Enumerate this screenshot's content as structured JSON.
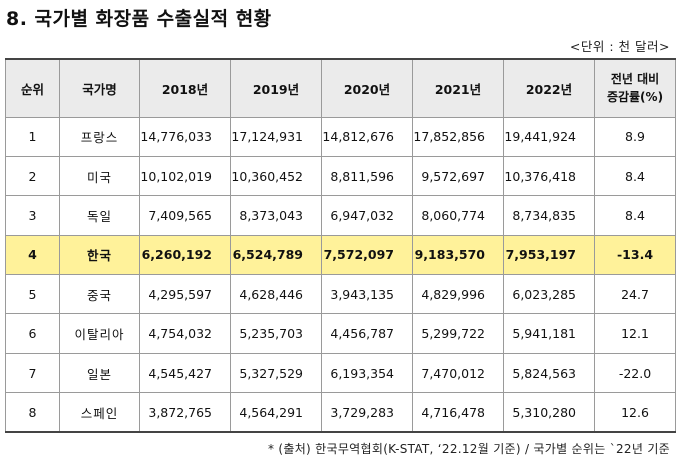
{
  "title": "8. 국가별 화장품 수출실적 현황",
  "unit": "<단위 : 천 달러>",
  "headers": {
    "rank": "순위",
    "country": "국가명",
    "y2018": "2018년",
    "y2019": "2019년",
    "y2020": "2020년",
    "y2021": "2021년",
    "y2022": "2022년",
    "change_line1": "전년 대비",
    "change_line2": "증감률(%)"
  },
  "rows": [
    {
      "rank": "1",
      "country": "프랑스",
      "y2018": "14,776,033",
      "y2019": "17,124,931",
      "y2020": "14,812,676",
      "y2021": "17,852,856",
      "y2022": "19,441,924",
      "change": "8.9"
    },
    {
      "rank": "2",
      "country": "미국",
      "y2018": "10,102,019",
      "y2019": "10,360,452",
      "y2020": "8,811,596",
      "y2021": "9,572,697",
      "y2022": "10,376,418",
      "change": "8.4"
    },
    {
      "rank": "3",
      "country": "독일",
      "y2018": "7,409,565",
      "y2019": "8,373,043",
      "y2020": "6,947,032",
      "y2021": "8,060,774",
      "y2022": "8,734,835",
      "change": "8.4"
    },
    {
      "rank": "4",
      "country": "한국",
      "y2018": "6,260,192",
      "y2019": "6,524,789",
      "y2020": "7,572,097",
      "y2021": "9,183,570",
      "y2022": "7,953,197",
      "change": "-13.4"
    },
    {
      "rank": "5",
      "country": "중국",
      "y2018": "4,295,597",
      "y2019": "4,628,446",
      "y2020": "3,943,135",
      "y2021": "4,829,996",
      "y2022": "6,023,285",
      "change": "24.7"
    },
    {
      "rank": "6",
      "country": "이탈리아",
      "y2018": "4,754,032",
      "y2019": "5,235,703",
      "y2020": "4,456,787",
      "y2021": "5,299,722",
      "y2022": "5,941,181",
      "change": "12.1"
    },
    {
      "rank": "7",
      "country": "일본",
      "y2018": "4,545,427",
      "y2019": "5,327,529",
      "y2020": "6,193,354",
      "y2021": "7,470,012",
      "y2022": "5,824,563",
      "change": "-22.0"
    },
    {
      "rank": "8",
      "country": "스페인",
      "y2018": "3,872,765",
      "y2019": "4,564,291",
      "y2020": "3,729,283",
      "y2021": "4,716,478",
      "y2022": "5,310,280",
      "change": "12.6"
    }
  ],
  "highlight_color": "#fff29a",
  "note": "* (출처) 한국무역협회(K-STAT, ‘22.12월 기준) / 국가별 순위는 `22년 기준"
}
